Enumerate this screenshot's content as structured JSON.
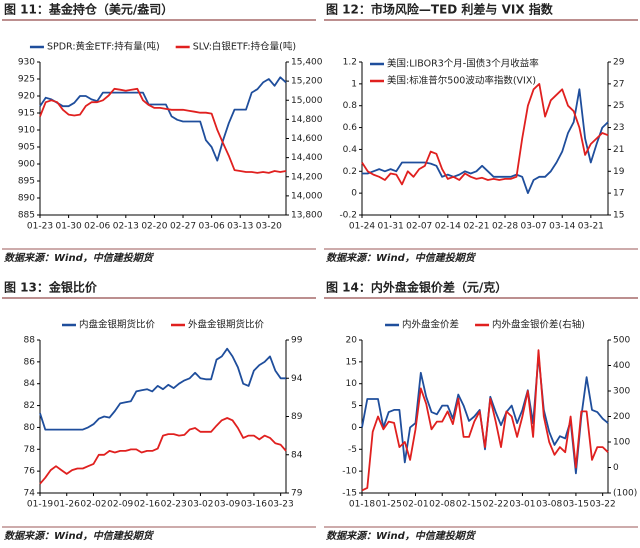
{
  "chart_data": [
    {
      "type": "line",
      "title": "图 11：基金持仓（美元/盎司）",
      "source": "数据来源：Wind，中信建投期货",
      "legend": "top",
      "legend_layout": "horizontal",
      "categories": [
        "01-23",
        null,
        null,
        null,
        null,
        "01-30",
        null,
        null,
        null,
        null,
        "02-06",
        null,
        null,
        null,
        null,
        "02-13",
        null,
        null,
        null,
        null,
        "02-20",
        null,
        null,
        null,
        null,
        "02-27",
        null,
        null,
        null,
        null,
        "03-06",
        null,
        null,
        null,
        null,
        "03-13",
        null,
        null,
        null,
        null,
        "03-20",
        null,
        null,
        null
      ],
      "ylim": [
        885,
        930
      ],
      "yticks": [
        885,
        890,
        895,
        900,
        905,
        910,
        915,
        920,
        925,
        930
      ],
      "y2lim": [
        13800,
        15400
      ],
      "y2ticks": [
        {
          "value": 13800,
          "label": "13,800"
        },
        {
          "value": 14000,
          "label": "14,000"
        },
        {
          "value": 14200,
          "label": "14,200"
        },
        {
          "value": 14400,
          "label": "14,400"
        },
        {
          "value": 14600,
          "label": "14,600"
        },
        {
          "value": 14800,
          "label": "14,800"
        },
        {
          "value": 15000,
          "label": "15,000"
        },
        {
          "value": 15200,
          "label": "15,200"
        },
        {
          "value": 15400,
          "label": "15,400"
        }
      ],
      "series": [
        {
          "name": "SPDR:黄金ETF:持有量(吨)",
          "color": "#1f4e9c",
          "axis": "y",
          "values": [
            917,
            919.5,
            919,
            918,
            917,
            917,
            918,
            920,
            920,
            919,
            918.5,
            921,
            921,
            921,
            921,
            921,
            921,
            921,
            921,
            917.5,
            917.5,
            917.5,
            917.5,
            914,
            913,
            912.5,
            912.5,
            912.5,
            912.5,
            907,
            905,
            901,
            907,
            912,
            916,
            916,
            916,
            921,
            922,
            924,
            925,
            923,
            925.5,
            924
          ]
        },
        {
          "name": "SLV:白银ETF:持仓量(吨)",
          "color": "#e0201f",
          "axis": "y2",
          "values": [
            14830,
            14980,
            15000,
            14980,
            14900,
            14850,
            14840,
            14850,
            14940,
            14980,
            14980,
            15000,
            15050,
            15120,
            15110,
            15100,
            15110,
            15120,
            15000,
            14950,
            14920,
            14920,
            14910,
            14900,
            14900,
            14900,
            14890,
            14880,
            14870,
            14870,
            14860,
            14690,
            14550,
            14420,
            14270,
            14260,
            14250,
            14250,
            14240,
            14250,
            14240,
            14260,
            14250,
            14260
          ]
        }
      ]
    },
    {
      "type": "line",
      "title": "图 12：市场风险—TED 利差与 VIX 指数",
      "source": "数据来源：Wind，中信建投期货",
      "legend": "top-left",
      "legend_layout": "vertical",
      "categories": [
        "01-24",
        null,
        null,
        null,
        null,
        "01-31",
        null,
        null,
        null,
        null,
        "02-07",
        null,
        null,
        null,
        null,
        "02-14",
        null,
        null,
        null,
        null,
        "02-21",
        null,
        null,
        null,
        null,
        "02-28",
        null,
        null,
        null,
        null,
        "03-07",
        null,
        null,
        null,
        null,
        "03-14",
        null,
        null,
        null,
        null,
        "03-21",
        null,
        null,
        null
      ],
      "ylim": [
        -0.2,
        1.2
      ],
      "yticks": [
        -0.2,
        0,
        0.2,
        0.4,
        0.6,
        0.8,
        1,
        1.2
      ],
      "y2lim": [
        15,
        29
      ],
      "y2ticks": [
        15,
        17,
        19,
        21,
        23,
        25,
        27,
        29
      ],
      "series": [
        {
          "name": "美国:LIBOR3个月-国债3个月收益率",
          "color": "#1f4e9c",
          "axis": "y",
          "values": [
            0.18,
            0.18,
            0.2,
            0.22,
            0.2,
            0.22,
            0.2,
            0.28,
            0.28,
            0.28,
            0.28,
            0.28,
            0.27,
            0.25,
            0.15,
            0.17,
            0.15,
            0.17,
            0.2,
            0.18,
            0.2,
            0.25,
            0.2,
            0.15,
            0.15,
            0.15,
            0.15,
            0.17,
            0.15,
            0.0,
            0.12,
            0.15,
            0.15,
            0.2,
            0.28,
            0.38,
            0.55,
            0.65,
            0.95,
            0.5,
            0.28,
            0.45,
            0.6,
            0.65
          ]
        },
        {
          "name": "美国:标准普尔500波动率指数(VIX)",
          "color": "#e0201f",
          "axis": "y2",
          "values": [
            19.8,
            19,
            18.7,
            18.5,
            18.2,
            18.8,
            18.7,
            17.8,
            19,
            18.5,
            19.2,
            19.5,
            20.8,
            20.6,
            19.2,
            18.3,
            18.5,
            18.2,
            18.8,
            18.5,
            18.3,
            18.4,
            18.2,
            18.3,
            18.2,
            18.3,
            18.3,
            18.5,
            22,
            25,
            26.5,
            27,
            24,
            25.5,
            26,
            26.5,
            25,
            24.5,
            23,
            20.5,
            21.5,
            22,
            22.5,
            22.3
          ]
        }
      ]
    },
    {
      "type": "line",
      "title": "图 13：金银比价",
      "source": "数据来源：Wind，中信建投期货",
      "legend": "top",
      "legend_layout": "horizontal",
      "categories": [
        "01-19",
        null,
        null,
        null,
        null,
        "01-26",
        null,
        null,
        null,
        null,
        "02-02",
        null,
        null,
        null,
        null,
        "02-09",
        null,
        null,
        null,
        null,
        "02-16",
        null,
        null,
        null,
        null,
        "02-23",
        null,
        null,
        null,
        null,
        "03-02",
        null,
        null,
        null,
        null,
        "03-09",
        null,
        null,
        null,
        null,
        "03-16",
        null,
        null,
        null,
        null,
        "03-23",
        null
      ],
      "ylim": [
        74,
        88
      ],
      "yticks": [
        74,
        76,
        78,
        80,
        82,
        84,
        86,
        88
      ],
      "y2lim": [
        79,
        99
      ],
      "y2ticks": [
        79,
        84,
        89,
        94,
        99
      ],
      "series": [
        {
          "name": "内盘金银期货比价",
          "color": "#1f4e9c",
          "axis": "y",
          "values": [
            81.3,
            79.8,
            79.8,
            79.8,
            79.8,
            79.8,
            79.8,
            79.8,
            79.8,
            80,
            80.3,
            80.8,
            81,
            80.9,
            81.5,
            82.2,
            82.3,
            82.4,
            83.3,
            83.4,
            83.5,
            83.3,
            83.8,
            83.5,
            83.9,
            83.6,
            84,
            84.3,
            84.5,
            85,
            84.5,
            84.4,
            84.4,
            86.2,
            86.5,
            87.2,
            86.5,
            85.5,
            84,
            83.8,
            85.2,
            85.7,
            86,
            86.5,
            85.2,
            84.5,
            84.5
          ]
        },
        {
          "name": "外盘金银期货比价",
          "color": "#e0201f",
          "axis": "y2",
          "values": [
            80.2,
            81,
            82,
            82.5,
            82,
            81.5,
            82,
            82.2,
            82.2,
            82.5,
            82.8,
            84,
            84,
            84.5,
            84.3,
            84.5,
            84.5,
            84.7,
            84.7,
            84.3,
            84.5,
            84.5,
            84.8,
            86.5,
            86.7,
            86.7,
            86.5,
            86.6,
            87.3,
            87.5,
            87,
            87,
            87,
            87.8,
            88.5,
            88.8,
            88.5,
            87.5,
            86.2,
            86.5,
            86.5,
            86,
            86.5,
            86.2,
            85.5,
            85.3,
            84.5
          ]
        }
      ]
    },
    {
      "type": "line",
      "title": "图 14：内外盘金银价差（元/克）",
      "source": "数据来源：Wind，中信建投期货",
      "legend": "top",
      "legend_layout": "horizontal",
      "y2_negative_color": "#e0201f",
      "categories": [
        "01-18",
        null,
        null,
        null,
        null,
        "01-25",
        null,
        null,
        null,
        null,
        "02-01",
        null,
        null,
        null,
        null,
        "02-08",
        null,
        null,
        null,
        null,
        "02-15",
        null,
        null,
        null,
        null,
        "02-22",
        null,
        null,
        null,
        null,
        "03-01",
        null,
        null,
        null,
        null,
        "03-08",
        null,
        null,
        null,
        null,
        "03-15",
        null,
        null,
        null,
        null,
        "03-22",
        null
      ],
      "ylim": [
        -15,
        20
      ],
      "yticks": [
        -15,
        -10,
        -5,
        0,
        5,
        10,
        15,
        20
      ],
      "y2lim": [
        -100,
        500
      ],
      "y2ticks": [
        {
          "value": -100,
          "label": "(100)"
        },
        0,
        100,
        200,
        300,
        400,
        500
      ],
      "series": [
        {
          "name": "内外盘金价差",
          "color": "#1f4e9c",
          "axis": "y",
          "values": [
            0,
            6.5,
            6.5,
            6.5,
            0,
            3.5,
            4,
            4,
            -8,
            0,
            1,
            12.5,
            7,
            3.5,
            3,
            5,
            5,
            2,
            7.5,
            5,
            1.5,
            2.5,
            4,
            -5,
            7,
            3.5,
            0.5,
            3.5,
            5,
            1,
            4,
            8.5,
            1,
            16.5,
            4,
            -1,
            -4,
            -2,
            -2.5,
            1.5,
            -10.5,
            2.5,
            11.5,
            4,
            3.5,
            2,
            1
          ]
        },
        {
          "name": "内外盘金银价差(右轴)",
          "color": "#e0201f",
          "axis": "y2",
          "values": [
            -90,
            -80,
            140,
            200,
            150,
            180,
            175,
            80,
            100,
            30,
            150,
            310,
            250,
            150,
            180,
            180,
            220,
            170,
            270,
            120,
            120,
            180,
            220,
            80,
            270,
            180,
            80,
            220,
            200,
            120,
            200,
            300,
            120,
            460,
            200,
            100,
            50,
            80,
            60,
            200,
            0,
            220,
            220,
            30,
            80,
            80,
            60
          ]
        }
      ]
    }
  ]
}
